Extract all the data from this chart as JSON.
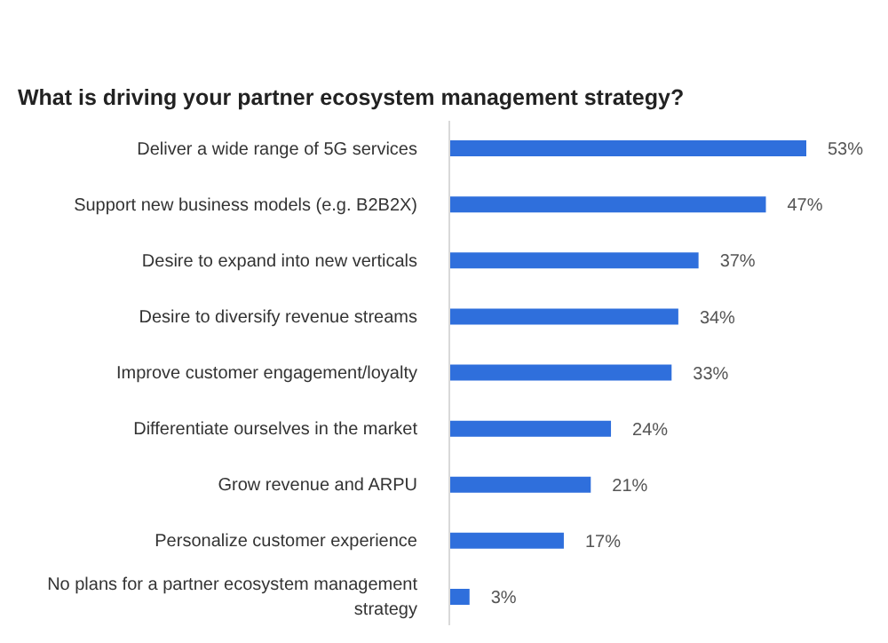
{
  "chart_data": {
    "type": "bar",
    "orientation": "horizontal",
    "title": "What is driving your partner ecosystem management strategy?",
    "categories": [
      "Deliver a wide range of 5G services",
      "Support new business models (e.g. B2B2X)",
      "Desire to expand into new verticals",
      "Desire to diversify revenue streams",
      "Improve customer engagement/loyalty",
      "Differentiate ourselves in the market",
      "Grow revenue and ARPU",
      "Personalize customer experience",
      "No plans for a partner ecosystem management strategy"
    ],
    "values": [
      53,
      47,
      37,
      34,
      33,
      24,
      21,
      17,
      3
    ],
    "value_labels": [
      "53%",
      "47%",
      "37%",
      "34%",
      "33%",
      "24%",
      "21%",
      "17%",
      "3%"
    ],
    "color": "#2f6fdc"
  }
}
